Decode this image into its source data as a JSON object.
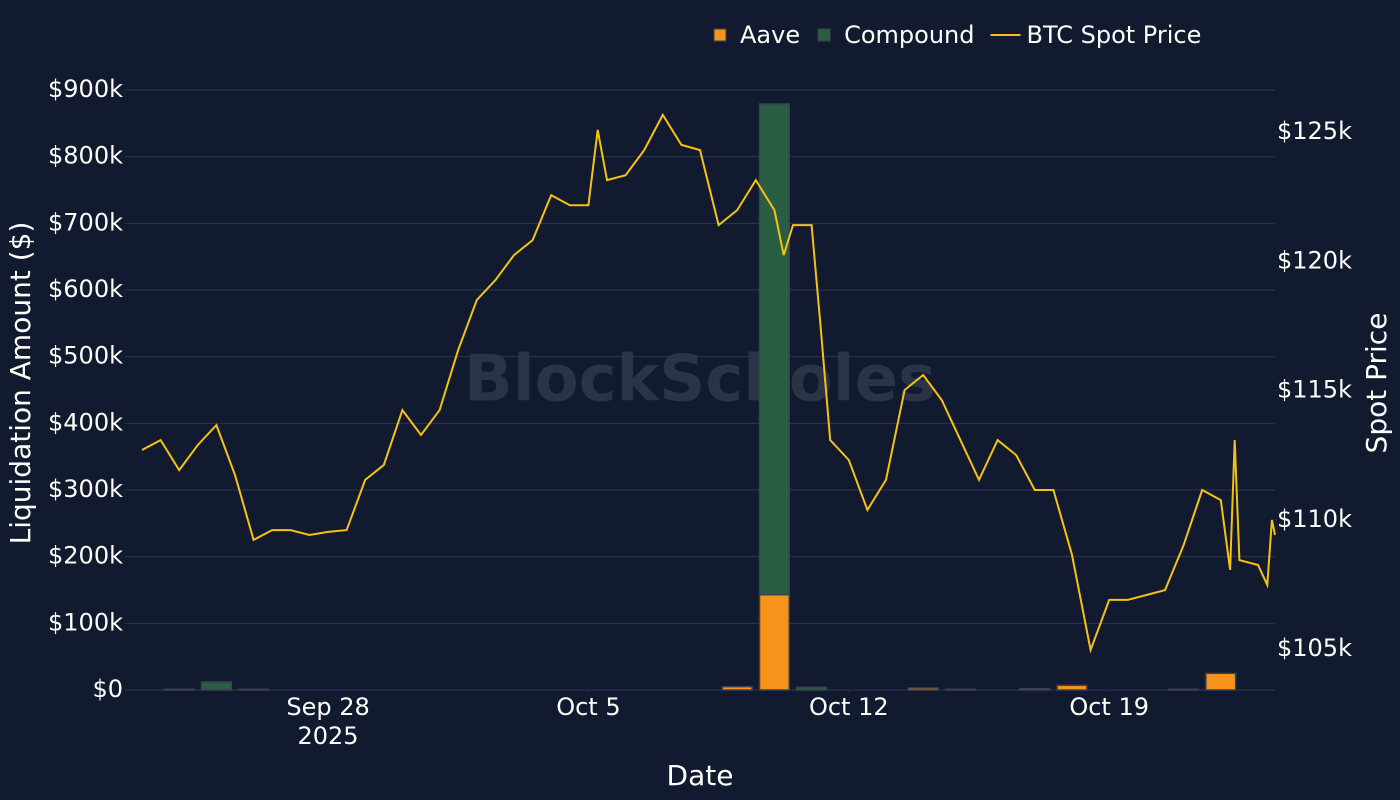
{
  "chart_data": {
    "type": "bar",
    "barmode": "stack",
    "watermark": "BlockScholes",
    "xlabel": "Date",
    "ylabel": "Liquidation Amount ($)",
    "y2label": "Spot Price",
    "xlim": [
      "2025-09-22 13:00",
      "2025-10-23 11:00"
    ],
    "xticks": [
      {
        "value": "2025-09-28",
        "label": "Sep 28\n2025"
      },
      {
        "value": "2025-10-05",
        "label": "Oct 5"
      },
      {
        "value": "2025-10-12",
        "label": "Oct 12"
      },
      {
        "value": "2025-10-19",
        "label": "Oct 19"
      }
    ],
    "ylim": [
      0,
      900000
    ],
    "yticks": [
      {
        "value": 0,
        "label": "$0"
      },
      {
        "value": 100000,
        "label": "$100k"
      },
      {
        "value": 200000,
        "label": "$200k"
      },
      {
        "value": 300000,
        "label": "$300k"
      },
      {
        "value": 400000,
        "label": "$400k"
      },
      {
        "value": 500000,
        "label": "$500k"
      },
      {
        "value": 600000,
        "label": "$600k"
      },
      {
        "value": 700000,
        "label": "$700k"
      },
      {
        "value": 800000,
        "label": "$800k"
      },
      {
        "value": 900000,
        "label": "$900k"
      }
    ],
    "y2lim": [
      103414,
      126625
    ],
    "y2ticks": [
      {
        "value": 105000,
        "label": "$105k"
      },
      {
        "value": 110000,
        "label": "$110k"
      },
      {
        "value": 115000,
        "label": "$115k"
      },
      {
        "value": 120000,
        "label": "$120k"
      },
      {
        "value": 125000,
        "label": "$125k"
      }
    ],
    "grid": true,
    "legend": "top-right",
    "x": [
      "2025-09-23",
      "2025-09-24",
      "2025-09-25",
      "2025-09-26",
      "2025-09-27",
      "2025-09-28",
      "2025-09-29",
      "2025-09-30",
      "2025-10-01",
      "2025-10-02",
      "2025-10-03",
      "2025-10-04",
      "2025-10-05",
      "2025-10-06",
      "2025-10-07",
      "2025-10-08",
      "2025-10-09",
      "2025-10-10",
      "2025-10-11",
      "2025-10-12",
      "2025-10-13",
      "2025-10-14",
      "2025-10-15",
      "2025-10-16",
      "2025-10-17",
      "2025-10-18",
      "2025-10-19",
      "2025-10-20",
      "2025-10-21",
      "2025-10-22"
    ],
    "series": [
      {
        "name": "Aave",
        "type": "bar",
        "color": "#f7931a",
        "values": [
          0,
          0,
          0,
          0,
          0,
          0,
          0,
          0,
          0,
          0,
          0,
          0,
          0,
          0,
          0,
          0,
          5000,
          143000,
          0,
          0,
          0,
          3000,
          0,
          0,
          0,
          7000,
          0,
          0,
          0,
          25000
        ]
      },
      {
        "name": "Compound",
        "type": "bar",
        "color": "#2a5e42",
        "values": [
          0,
          1000,
          12000,
          1000,
          0,
          0,
          0,
          0,
          0,
          0,
          0,
          0,
          0,
          0,
          0,
          0,
          0,
          736000,
          4000,
          0,
          0,
          0,
          1000,
          0,
          2000,
          0,
          0,
          0,
          1000,
          0
        ]
      },
      {
        "name": "BTC Spot Price",
        "type": "line",
        "axis": "y2",
        "color": "#f5c211",
        "x": [
          "2025-09-23 00:00",
          "2025-09-23 12:00",
          "2025-09-24 00:00",
          "2025-09-24 12:00",
          "2025-09-25 00:00",
          "2025-09-25 12:00",
          "2025-09-26 00:00",
          "2025-09-26 12:00",
          "2025-09-27 00:00",
          "2025-09-27 12:00",
          "2025-09-28 00:00",
          "2025-09-28 12:00",
          "2025-09-29 00:00",
          "2025-09-29 12:00",
          "2025-09-30 00:00",
          "2025-09-30 12:00",
          "2025-10-01 00:00",
          "2025-10-01 12:00",
          "2025-10-02 00:00",
          "2025-10-02 12:00",
          "2025-10-03 00:00",
          "2025-10-03 12:00",
          "2025-10-04 00:00",
          "2025-10-04 12:00",
          "2025-10-05 00:00",
          "2025-10-05 06:00",
          "2025-10-05 12:00",
          "2025-10-06 00:00",
          "2025-10-06 12:00",
          "2025-10-07 00:00",
          "2025-10-07 12:00",
          "2025-10-08 00:00",
          "2025-10-08 12:00",
          "2025-10-09 00:00",
          "2025-10-09 12:00",
          "2025-10-10 00:00",
          "2025-10-10 06:00",
          "2025-10-10 12:00",
          "2025-10-11 00:00",
          "2025-10-11 06:00",
          "2025-10-11 12:00",
          "2025-10-12 00:00",
          "2025-10-12 12:00",
          "2025-10-13 00:00",
          "2025-10-13 12:00",
          "2025-10-14 00:00",
          "2025-10-14 12:00",
          "2025-10-15 00:00",
          "2025-10-15 12:00",
          "2025-10-16 00:00",
          "2025-10-16 12:00",
          "2025-10-17 00:00",
          "2025-10-17 12:00",
          "2025-10-18 00:00",
          "2025-10-18 12:00",
          "2025-10-19 00:00",
          "2025-10-19 12:00",
          "2025-10-20 00:00",
          "2025-10-20 12:00",
          "2025-10-21 00:00",
          "2025-10-21 12:00",
          "2025-10-22 00:00",
          "2025-10-22 06:00",
          "2025-10-22 09:00",
          "2025-10-22 12:00",
          "2025-10-23 00:00",
          "2025-10-23 06:00",
          "2025-10-23 09:00",
          "2025-10-23 11:00"
        ],
        "values": [
          112700,
          113080,
          111920,
          112890,
          113660,
          111730,
          109220,
          109600,
          109600,
          109410,
          109530,
          109600,
          111540,
          112120,
          114240,
          113280,
          114240,
          116570,
          118500,
          119270,
          120240,
          120820,
          122560,
          122170,
          122170,
          125080,
          123140,
          123330,
          124300,
          125660,
          124500,
          124300,
          121400,
          121980,
          123140,
          121980,
          120240,
          121400,
          121400,
          117340,
          113080,
          112310,
          110380,
          111540,
          115020,
          115600,
          114630,
          113080,
          111540,
          113080,
          112500,
          111150,
          111150,
          108640,
          104960,
          106900,
          106900,
          107090,
          107280,
          109020,
          111150,
          110760,
          108060,
          113080,
          108440,
          108250,
          107480,
          109990,
          109410
        ]
      }
    ]
  }
}
